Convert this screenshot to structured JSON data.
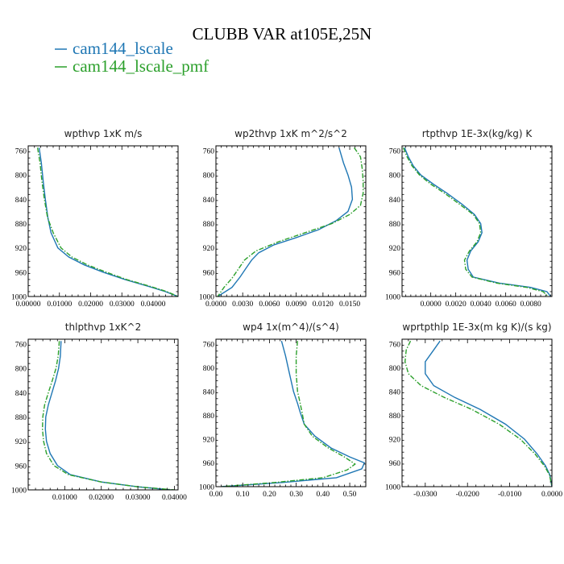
{
  "figure": {
    "title": "CLUBB VAR at105E,25N"
  },
  "colors": {
    "cam144_lscale": "#1f77b4",
    "cam144_lscale_pmf": "#2ca02c"
  },
  "legend": [
    {
      "label": "cam144_lscale",
      "color": "#1f77b4",
      "style": "solid"
    },
    {
      "label": "cam144_lscale_pmf",
      "color": "#2ca02c",
      "style": "dash-dot"
    }
  ],
  "chart_data": [
    {
      "type": "line",
      "title": "wpthvp   1xK m/s",
      "ylim": [
        1000,
        752
      ],
      "y_ticks": [
        1000,
        960,
        920,
        880,
        840,
        800,
        760
      ],
      "xlim": [
        0.0,
        0.048
      ],
      "x_ticks": [
        0.0,
        0.01,
        0.02,
        0.03,
        0.04
      ],
      "x_tick_labels": [
        "0.00000",
        "0.01000",
        "0.02000",
        "0.03000",
        "0.04000"
      ],
      "series": [
        {
          "name": "cam144_lscale",
          "points": [
            [
              0.0035,
              755
            ],
            [
              0.0042,
              780
            ],
            [
              0.0048,
              810
            ],
            [
              0.0055,
              840
            ],
            [
              0.0063,
              870
            ],
            [
              0.0073,
              895
            ],
            [
              0.0095,
              920
            ],
            [
              0.013,
              935
            ],
            [
              0.018,
              948
            ],
            [
              0.024,
              960
            ],
            [
              0.031,
              972
            ],
            [
              0.039,
              984
            ],
            [
              0.044,
              992
            ],
            [
              0.048,
              1000
            ]
          ]
        },
        {
          "name": "cam144_lscale_pmf",
          "points": [
            [
              0.003,
              755
            ],
            [
              0.0038,
              780
            ],
            [
              0.0044,
              810
            ],
            [
              0.0052,
              840
            ],
            [
              0.0062,
              870
            ],
            [
              0.008,
              895
            ],
            [
              0.0105,
              920
            ],
            [
              0.014,
              935
            ],
            [
              0.019,
              948
            ],
            [
              0.025,
              960
            ],
            [
              0.0315,
              972
            ],
            [
              0.0395,
              984
            ],
            [
              0.0445,
              992
            ],
            [
              0.048,
              1000
            ]
          ]
        }
      ]
    },
    {
      "type": "line",
      "title": "wp2thvp   1xK m^2/s^2",
      "ylim": [
        1000,
        752
      ],
      "y_ticks": [
        1000,
        960,
        920,
        880,
        840,
        800,
        760
      ],
      "xlim": [
        0.0,
        0.0168
      ],
      "x_ticks": [
        0.0,
        0.003,
        0.006,
        0.009,
        0.012,
        0.015
      ],
      "x_tick_labels": [
        "0.0000",
        "0.0030",
        "0.0060",
        "0.0090",
        "0.0120",
        "0.0150"
      ],
      "series": [
        {
          "name": "cam144_lscale",
          "points": [
            [
              0.0138,
              755
            ],
            [
              0.0143,
              780
            ],
            [
              0.0148,
              800
            ],
            [
              0.0152,
              820
            ],
            [
              0.0153,
              840
            ],
            [
              0.0148,
              860
            ],
            [
              0.0135,
              875
            ],
            [
              0.0115,
              890
            ],
            [
              0.009,
              903
            ],
            [
              0.0065,
              915
            ],
            [
              0.0048,
              928
            ],
            [
              0.004,
              940
            ],
            [
              0.0033,
              955
            ],
            [
              0.0027,
              968
            ],
            [
              0.0018,
              985
            ],
            [
              0.0002,
              1000
            ]
          ]
        },
        {
          "name": "cam144_lscale_pmf",
          "points": [
            [
              0.0155,
              755
            ],
            [
              0.0162,
              770
            ],
            [
              0.0164,
              790
            ],
            [
              0.0165,
              810
            ],
            [
              0.0165,
              830
            ],
            [
              0.0162,
              850
            ],
            [
              0.015,
              865
            ],
            [
              0.013,
              880
            ],
            [
              0.01,
              895
            ],
            [
              0.007,
              910
            ],
            [
              0.0045,
              925
            ],
            [
              0.0032,
              940
            ],
            [
              0.0025,
              955
            ],
            [
              0.0018,
              970
            ],
            [
              0.0009,
              985
            ],
            [
              0.0002,
              1000
            ]
          ]
        }
      ]
    },
    {
      "type": "line",
      "title": "rtpthvp   1E-3x(kg/kg) K",
      "ylim": [
        1000,
        752
      ],
      "y_ticks": [
        1000,
        960,
        920,
        880,
        840,
        800,
        760
      ],
      "xlim": [
        -0.0023,
        0.0097
      ],
      "x_ticks": [
        0.0,
        0.002,
        0.004,
        0.006,
        0.008
      ],
      "x_tick_labels": [
        "0.0000",
        "0.0020",
        "0.0040",
        "0.0060",
        "0.0080"
      ],
      "series": [
        {
          "name": "cam144_lscale",
          "points": [
            [
              -0.0021,
              755
            ],
            [
              -0.0018,
              770
            ],
            [
              -0.0014,
              785
            ],
            [
              -0.0008,
              800
            ],
            [
              0.0002,
              815
            ],
            [
              0.0013,
              830
            ],
            [
              0.0025,
              848
            ],
            [
              0.0035,
              865
            ],
            [
              0.004,
              880
            ],
            [
              0.0041,
              895
            ],
            [
              0.0038,
              910
            ],
            [
              0.0032,
              925
            ],
            [
              0.0029,
              940
            ],
            [
              0.003,
              955
            ],
            [
              0.0034,
              968
            ],
            [
              0.0055,
              978
            ],
            [
              0.008,
              985
            ],
            [
              0.0093,
              992
            ],
            [
              0.0096,
              1000
            ]
          ]
        },
        {
          "name": "cam144_lscale_pmf",
          "points": [
            [
              -0.0022,
              755
            ],
            [
              -0.0019,
              770
            ],
            [
              -0.0015,
              785
            ],
            [
              -0.0009,
              800
            ],
            [
              0.0,
              815
            ],
            [
              0.0011,
              830
            ],
            [
              0.0023,
              848
            ],
            [
              0.0034,
              865
            ],
            [
              0.0039,
              880
            ],
            [
              0.004,
              895
            ],
            [
              0.0037,
              910
            ],
            [
              0.0031,
              925
            ],
            [
              0.0027,
              940
            ],
            [
              0.0028,
              955
            ],
            [
              0.0033,
              968
            ],
            [
              0.0053,
              978
            ],
            [
              0.0077,
              985
            ],
            [
              0.009,
              992
            ],
            [
              0.0094,
              1000
            ]
          ]
        }
      ]
    },
    {
      "type": "line",
      "title": "thlpthvp   1xK^2",
      "ylim": [
        1000,
        752
      ],
      "y_ticks": [
        1000,
        960,
        920,
        880,
        840,
        800,
        760
      ],
      "xlim": [
        0.0,
        0.041
      ],
      "x_ticks": [
        0.01,
        0.02,
        0.03,
        0.04
      ],
      "x_tick_labels": [
        "0.01000",
        "0.02000",
        "0.03000",
        "0.04000"
      ],
      "series": [
        {
          "name": "cam144_lscale",
          "points": [
            [
              0.009,
              755
            ],
            [
              0.0088,
              780
            ],
            [
              0.0083,
              800
            ],
            [
              0.0075,
              820
            ],
            [
              0.0065,
              840
            ],
            [
              0.0055,
              860
            ],
            [
              0.0048,
              880
            ],
            [
              0.0047,
              900
            ],
            [
              0.005,
              920
            ],
            [
              0.006,
              940
            ],
            [
              0.008,
              960
            ],
            [
              0.0115,
              975
            ],
            [
              0.02,
              987
            ],
            [
              0.03,
              995
            ],
            [
              0.039,
              1000
            ]
          ]
        },
        {
          "name": "cam144_lscale_pmf",
          "points": [
            [
              0.0085,
              755
            ],
            [
              0.0082,
              780
            ],
            [
              0.0076,
              800
            ],
            [
              0.0066,
              820
            ],
            [
              0.0055,
              840
            ],
            [
              0.0045,
              860
            ],
            [
              0.004,
              880
            ],
            [
              0.0039,
              900
            ],
            [
              0.0042,
              920
            ],
            [
              0.005,
              940
            ],
            [
              0.007,
              960
            ],
            [
              0.011,
              975
            ],
            [
              0.02,
              987
            ],
            [
              0.03,
              995
            ],
            [
              0.04,
              1000
            ]
          ]
        }
      ]
    },
    {
      "type": "line",
      "title": "wp4   1x(m^4)/(s^4)",
      "ylim": [
        1000,
        752
      ],
      "y_ticks": [
        1000,
        960,
        920,
        880,
        840,
        800,
        760
      ],
      "xlim": [
        0.0,
        0.56
      ],
      "x_ticks": [
        0.0,
        0.1,
        0.2,
        0.3,
        0.4,
        0.5
      ],
      "x_tick_labels": [
        "0.00",
        "0.10",
        "0.20",
        "0.30",
        "0.40",
        "0.50"
      ],
      "series": [
        {
          "name": "cam144_lscale",
          "points": [
            [
              0.245,
              755
            ],
            [
              0.26,
              780
            ],
            [
              0.275,
              810
            ],
            [
              0.29,
              840
            ],
            [
              0.305,
              860
            ],
            [
              0.315,
              875
            ],
            [
              0.33,
              895
            ],
            [
              0.37,
              915
            ],
            [
              0.43,
              935
            ],
            [
              0.5,
              950
            ],
            [
              0.555,
              960
            ],
            [
              0.545,
              970
            ],
            [
              0.45,
              985
            ],
            [
              0.25,
              993
            ],
            [
              0.02,
              1000
            ]
          ]
        },
        {
          "name": "cam144_lscale_pmf",
          "points": [
            [
              0.305,
              755
            ],
            [
              0.3,
              780
            ],
            [
              0.3,
              810
            ],
            [
              0.305,
              840
            ],
            [
              0.315,
              860
            ],
            [
              0.322,
              875
            ],
            [
              0.33,
              895
            ],
            [
              0.36,
              915
            ],
            [
              0.42,
              935
            ],
            [
              0.48,
              950
            ],
            [
              0.52,
              962
            ],
            [
              0.49,
              972
            ],
            [
              0.4,
              985
            ],
            [
              0.22,
              993
            ],
            [
              0.02,
              1000
            ]
          ]
        }
      ]
    },
    {
      "type": "line",
      "title": "wprtpthlp   1E-3x(m kg K)/(s kg)",
      "ylim": [
        1000,
        752
      ],
      "y_ticks": [
        1000,
        960,
        920,
        880,
        840,
        800,
        760
      ],
      "xlim": [
        -0.0355,
        0.0
      ],
      "x_ticks": [
        -0.03,
        -0.02,
        -0.01,
        0.0
      ],
      "x_tick_labels": [
        "-0.0300",
        "-0.0200",
        "-0.0100",
        "0.0000"
      ],
      "series": [
        {
          "name": "cam144_lscale",
          "points": [
            [
              -0.0265,
              755
            ],
            [
              -0.028,
              770
            ],
            [
              -0.03,
              790
            ],
            [
              -0.03,
              810
            ],
            [
              -0.028,
              830
            ],
            [
              -0.023,
              850
            ],
            [
              -0.017,
              870
            ],
            [
              -0.011,
              895
            ],
            [
              -0.0065,
              920
            ],
            [
              -0.0035,
              945
            ],
            [
              -0.0015,
              965
            ],
            [
              -0.0005,
              980
            ],
            [
              0.0,
              1000
            ]
          ]
        },
        {
          "name": "cam144_lscale_pmf",
          "points": [
            [
              -0.0335,
              755
            ],
            [
              -0.0345,
              770
            ],
            [
              -0.0348,
              790
            ],
            [
              -0.034,
              810
            ],
            [
              -0.031,
              830
            ],
            [
              -0.0255,
              850
            ],
            [
              -0.019,
              870
            ],
            [
              -0.0125,
              895
            ],
            [
              -0.0075,
              920
            ],
            [
              -0.004,
              945
            ],
            [
              -0.0018,
              965
            ],
            [
              -0.0006,
              980
            ],
            [
              0.0,
              1000
            ]
          ]
        }
      ]
    }
  ]
}
